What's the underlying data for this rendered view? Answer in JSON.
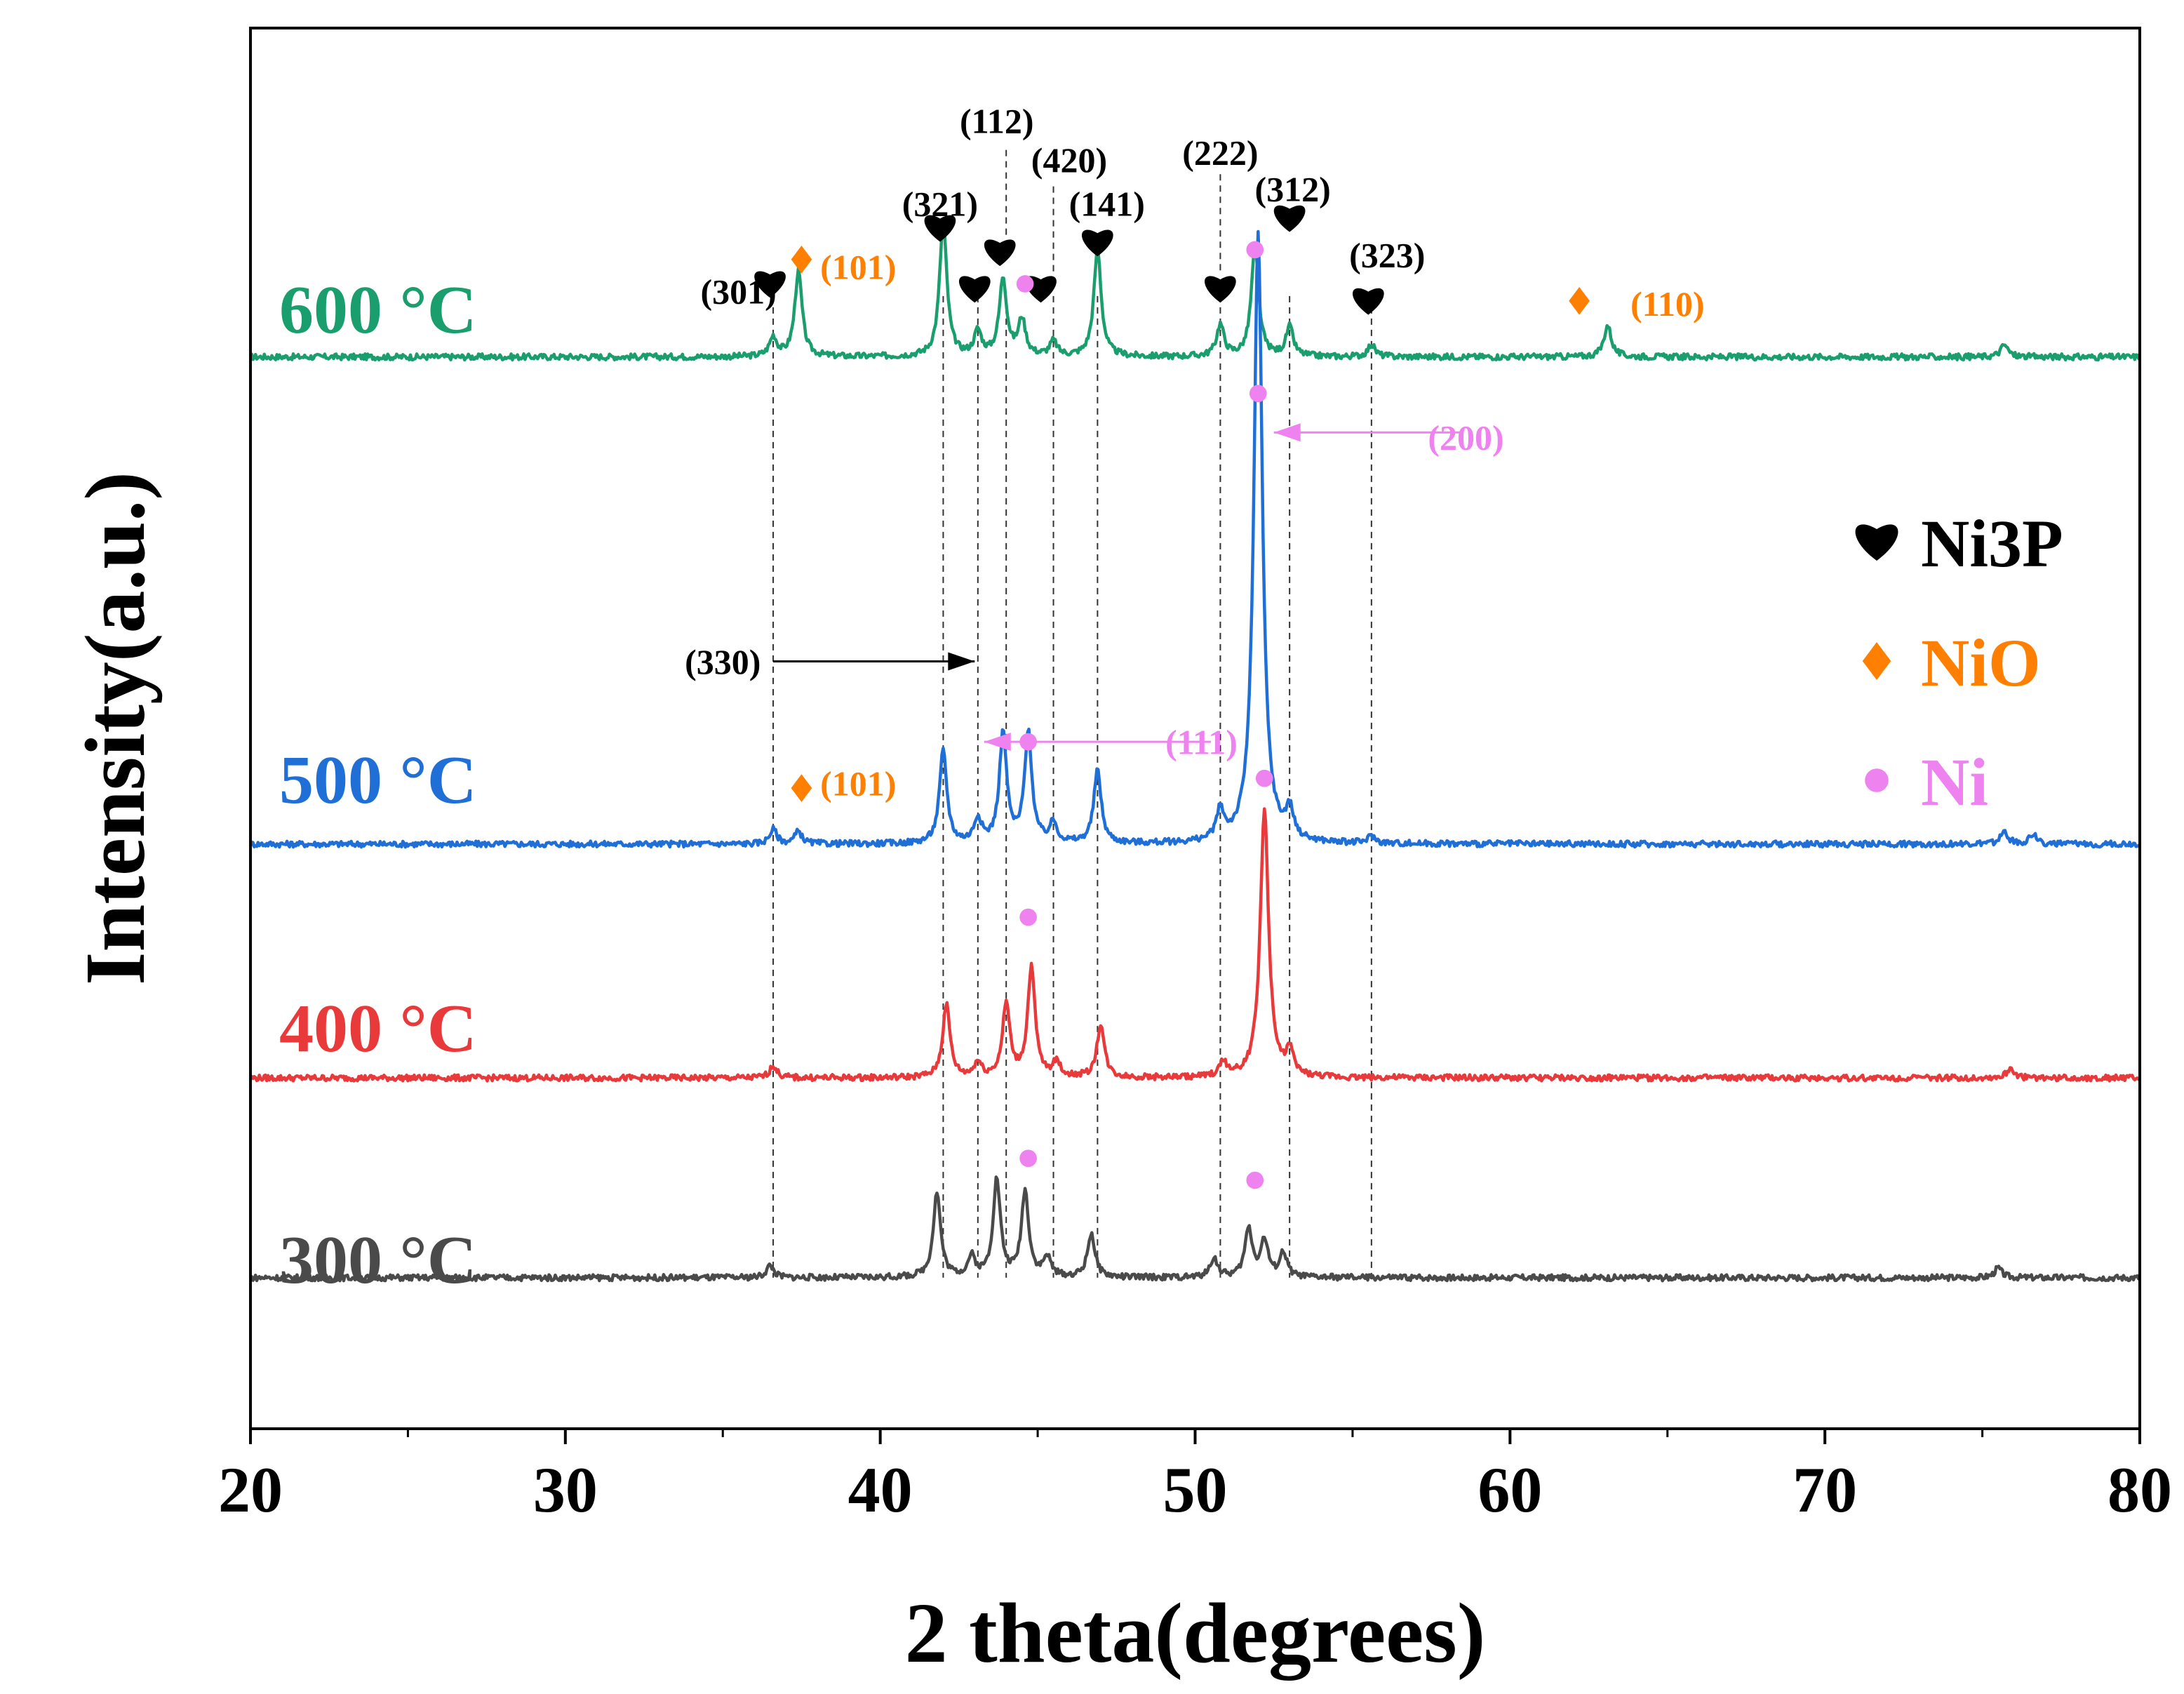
{
  "chart_data": {
    "type": "line",
    "title": "",
    "xlabel": "2 theta(degrees)",
    "ylabel": "Intensity(a.u.)",
    "xlim": [
      20,
      80
    ],
    "xticks": [
      "20",
      "30",
      "40",
      "50",
      "60",
      "70",
      "80"
    ],
    "yticks": [],
    "grid": false,
    "series": [
      {
        "name": "600 °C",
        "label": "600 °C",
        "color": "#1a9e6e",
        "baseline": 5.2,
        "peaks": [
          [
            36.6,
            0.08
          ],
          [
            37.4,
            0.35
          ],
          [
            42.0,
            0.55
          ],
          [
            43.1,
            0.1
          ],
          [
            43.9,
            0.32
          ],
          [
            44.5,
            0.15
          ],
          [
            45.5,
            0.06
          ],
          [
            46.9,
            0.44
          ],
          [
            50.8,
            0.13
          ],
          [
            51.9,
            0.45
          ],
          [
            53.0,
            0.12
          ],
          [
            55.6,
            0.05
          ],
          [
            63.1,
            0.13
          ],
          [
            75.7,
            0.05
          ]
        ]
      },
      {
        "name": "500 °C",
        "label": "500 °C",
        "color": "#1f6fd6",
        "baseline": 3.2,
        "peaks": [
          [
            36.6,
            0.06
          ],
          [
            37.4,
            0.05
          ],
          [
            42.0,
            0.38
          ],
          [
            43.1,
            0.1
          ],
          [
            43.9,
            0.45
          ],
          [
            44.7,
            0.45
          ],
          [
            45.5,
            0.08
          ],
          [
            46.9,
            0.3
          ],
          [
            50.8,
            0.12
          ],
          [
            52.0,
            2.5
          ],
          [
            53.0,
            0.12
          ],
          [
            55.6,
            0.03
          ],
          [
            75.7,
            0.05
          ],
          [
            76.6,
            0.04
          ]
        ]
      },
      {
        "name": "400 °C",
        "label": "400 °C",
        "color": "#e8393b",
        "baseline": 2.24,
        "peaks": [
          [
            36.6,
            0.05
          ],
          [
            42.1,
            0.3
          ],
          [
            43.1,
            0.06
          ],
          [
            44.0,
            0.3
          ],
          [
            44.8,
            0.45
          ],
          [
            45.6,
            0.06
          ],
          [
            47.0,
            0.22
          ],
          [
            50.9,
            0.06
          ],
          [
            52.2,
            1.1
          ],
          [
            53.0,
            0.1
          ],
          [
            75.9,
            0.04
          ]
        ]
      },
      {
        "name": "300 °C",
        "label": "300 °C",
        "color": "#4a4a4a",
        "baseline": 1.42,
        "peaks": [
          [
            36.5,
            0.05
          ],
          [
            41.8,
            0.35
          ],
          [
            42.9,
            0.08
          ],
          [
            43.7,
            0.4
          ],
          [
            44.6,
            0.35
          ],
          [
            45.3,
            0.08
          ],
          [
            46.7,
            0.18
          ],
          [
            50.6,
            0.08
          ],
          [
            51.7,
            0.2
          ],
          [
            52.2,
            0.15
          ],
          [
            52.8,
            0.1
          ],
          [
            75.5,
            0.04
          ]
        ]
      }
    ],
    "reference_lines": [
      36.6,
      42.0,
      43.1,
      44.0,
      45.5,
      46.9,
      50.8,
      53.0,
      55.6
    ],
    "annotations": [
      {
        "text": "(301)",
        "x": 35.5,
        "y": 5.47,
        "color": "#000000",
        "size": 50,
        "anchor": "middle"
      },
      {
        "text": "(101)",
        "x": 39.3,
        "y": 5.57,
        "color": "#ff7f00",
        "size": 50,
        "anchor": "middle"
      },
      {
        "text": "(321)",
        "x": 41.9,
        "y": 5.83,
        "color": "#000000",
        "size": 50,
        "anchor": "middle"
      },
      {
        "text": "(112)",
        "x": 43.7,
        "y": 6.17,
        "color": "#000000",
        "size": 50,
        "anchor": "middle"
      },
      {
        "text": "(420)",
        "x": 46.0,
        "y": 6.01,
        "color": "#000000",
        "size": 50,
        "anchor": "middle"
      },
      {
        "text": "(141)",
        "x": 47.2,
        "y": 5.83,
        "color": "#000000",
        "size": 50,
        "anchor": "middle"
      },
      {
        "text": "(222)",
        "x": 50.8,
        "y": 6.04,
        "color": "#000000",
        "size": 50,
        "anchor": "middle"
      },
      {
        "text": "(312)",
        "x": 53.1,
        "y": 5.89,
        "color": "#000000",
        "size": 50,
        "anchor": "middle"
      },
      {
        "text": "(323)",
        "x": 56.1,
        "y": 5.62,
        "color": "#000000",
        "size": 50,
        "anchor": "middle"
      },
      {
        "text": "(110)",
        "x": 65.0,
        "y": 5.42,
        "color": "#ff7f00",
        "size": 50,
        "anchor": "middle"
      },
      {
        "text": "(200)",
        "x": 58.6,
        "y": 4.87,
        "color": "#ee82ee",
        "size": 50,
        "anchor": "middle"
      },
      {
        "text": "(330)",
        "x": 35.0,
        "y": 3.95,
        "color": "#000000",
        "size": 50,
        "anchor": "middle"
      },
      {
        "text": "(111)",
        "x": 50.2,
        "y": 3.62,
        "color": "#ee82ee",
        "size": 50,
        "anchor": "middle"
      },
      {
        "text": "(101)",
        "x": 39.3,
        "y": 3.45,
        "color": "#ff7f00",
        "size": 50,
        "anchor": "middle"
      }
    ],
    "markers": [
      {
        "shape": "heart",
        "x": 36.5,
        "y": 5.5,
        "color": "#000000"
      },
      {
        "shape": "diamond",
        "x": 37.5,
        "y": 5.6,
        "color": "#ff7f00"
      },
      {
        "shape": "heart",
        "x": 41.9,
        "y": 5.73,
        "color": "#000000"
      },
      {
        "shape": "heart",
        "x": 43.0,
        "y": 5.48,
        "color": "#000000"
      },
      {
        "shape": "heart",
        "x": 43.8,
        "y": 5.63,
        "color": "#000000"
      },
      {
        "shape": "heart",
        "x": 45.1,
        "y": 5.48,
        "color": "#000000"
      },
      {
        "shape": "heart",
        "x": 46.9,
        "y": 5.67,
        "color": "#000000"
      },
      {
        "shape": "heart",
        "x": 50.8,
        "y": 5.48,
        "color": "#000000"
      },
      {
        "shape": "heart",
        "x": 53.0,
        "y": 5.77,
        "color": "#000000"
      },
      {
        "shape": "heart",
        "x": 55.5,
        "y": 5.43,
        "color": "#000000"
      },
      {
        "shape": "diamond",
        "x": 62.2,
        "y": 5.43,
        "color": "#ff7f00"
      },
      {
        "shape": "dot",
        "x": 44.6,
        "y": 5.5,
        "color": "#ee82ee"
      },
      {
        "shape": "dot",
        "x": 51.9,
        "y": 5.64,
        "color": "#ee82ee"
      },
      {
        "shape": "dot",
        "x": 52.0,
        "y": 5.05,
        "color": "#ee82ee"
      },
      {
        "shape": "dot",
        "x": 44.7,
        "y": 3.62,
        "color": "#ee82ee"
      },
      {
        "shape": "diamond",
        "x": 37.5,
        "y": 3.43,
        "color": "#ff7f00"
      },
      {
        "shape": "dot",
        "x": 52.2,
        "y": 3.47,
        "color": "#ee82ee"
      },
      {
        "shape": "dot",
        "x": 44.7,
        "y": 2.9,
        "color": "#ee82ee"
      },
      {
        "shape": "dot",
        "x": 44.7,
        "y": 1.91,
        "color": "#ee82ee"
      },
      {
        "shape": "dot",
        "x": 51.9,
        "y": 1.82,
        "color": "#ee82ee"
      }
    ],
    "arrows": [
      {
        "from": [
          58.5,
          4.89
        ],
        "to": [
          52.5,
          4.89
        ],
        "color": "#ee82ee"
      },
      {
        "from": [
          43.3,
          3.62
        ],
        "to": [
          50.5,
          3.62
        ],
        "color": "#ee82ee",
        "reverse": true
      },
      {
        "from": [
          36.6,
          3.95
        ],
        "to": [
          43.0,
          3.95
        ],
        "color": "#000000"
      }
    ],
    "legend": {
      "position": "right",
      "entries": [
        {
          "label": "Ni3P",
          "shape": "heart",
          "color": "#000000"
        },
        {
          "label": "NiO",
          "shape": "diamond",
          "color": "#ff7f00"
        },
        {
          "label": "Ni",
          "shape": "dot",
          "color": "#ee82ee"
        }
      ]
    }
  }
}
